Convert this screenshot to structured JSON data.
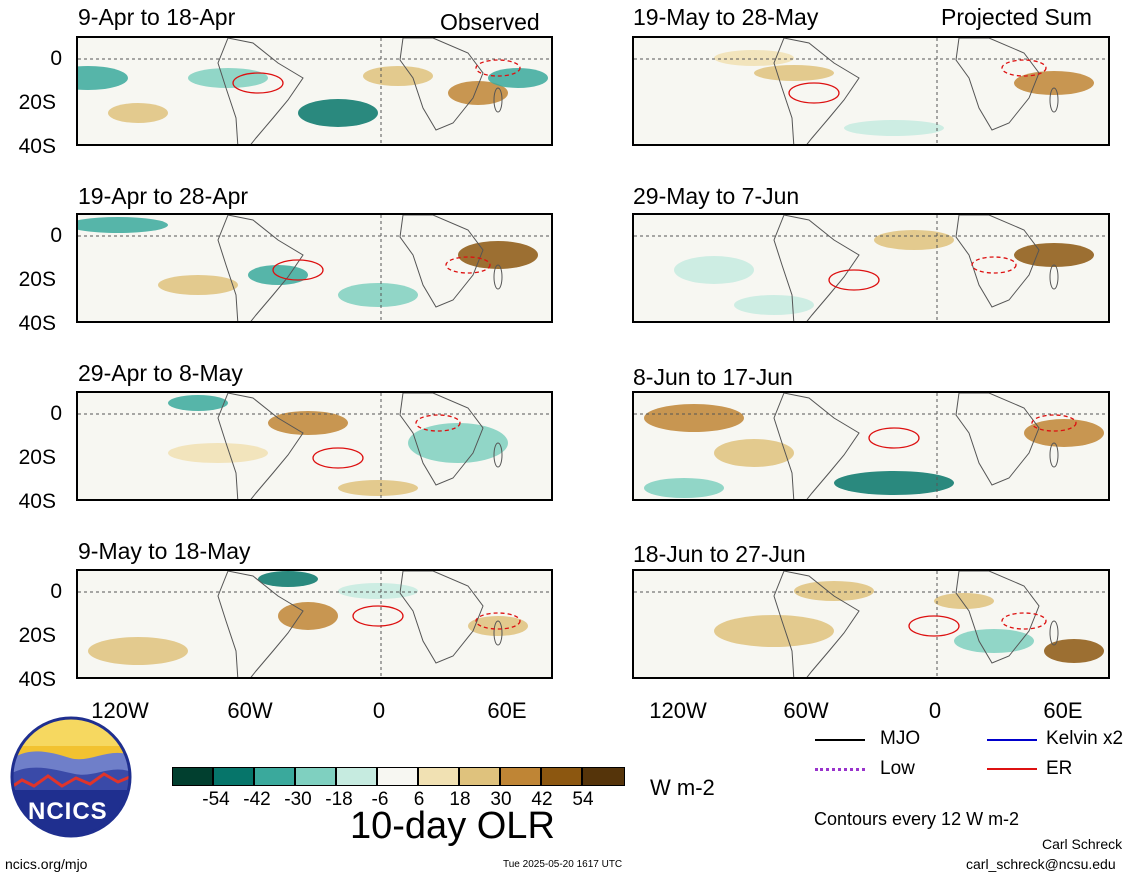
{
  "column_titles": {
    "observed": "Observed",
    "projected": "Projected Sum"
  },
  "panels": [
    {
      "id": "obs-1",
      "label": "9-Apr to 18-Apr"
    },
    {
      "id": "obs-2",
      "label": "19-Apr to 28-Apr"
    },
    {
      "id": "obs-3",
      "label": "29-Apr to 8-May"
    },
    {
      "id": "obs-4",
      "label": "9-May to 18-May"
    },
    {
      "id": "proj-1",
      "label": "19-May to 28-May"
    },
    {
      "id": "proj-2",
      "label": "29-May to 7-Jun"
    },
    {
      "id": "proj-3",
      "label": "8-Jun to 17-Jun"
    },
    {
      "id": "proj-4",
      "label": "18-Jun to 27-Jun"
    }
  ],
  "lat_labels": [
    "0",
    "20S",
    "40S"
  ],
  "lon_labels": [
    "120W",
    "60W",
    "0",
    "60E"
  ],
  "colorbar": {
    "title": "10-day OLR",
    "units": "W m-2",
    "ticks": [
      "-54",
      "-42",
      "-30",
      "-18",
      "-6",
      "6",
      "18",
      "30",
      "42",
      "54"
    ],
    "colors": [
      "#013f2f",
      "#06756a",
      "#3aa99c",
      "#7fd0c0",
      "#c6ebe0",
      "#f7f7f2",
      "#f1e1b3",
      "#dfc27d",
      "#bf8535",
      "#8c5710",
      "#55340a"
    ]
  },
  "legend": {
    "items": [
      {
        "name": "MJO",
        "color": "#000000",
        "style": "solid"
      },
      {
        "name": "Kelvin x2",
        "color": "#0000cc",
        "style": "solid"
      },
      {
        "name": "Low",
        "color": "#9933cc",
        "style": "dotted"
      },
      {
        "name": "ER",
        "color": "#dd1111",
        "style": "solid"
      }
    ],
    "contour_note": "Contours every 12 W m-2"
  },
  "logo_text": "NCICS",
  "footer": {
    "url": "ncics.org/mjo",
    "timestamp": "Tue 2025-05-20 1617 UTC",
    "author": "Carl Schreck",
    "email": "carl_schreck@ncsu.edu"
  }
}
